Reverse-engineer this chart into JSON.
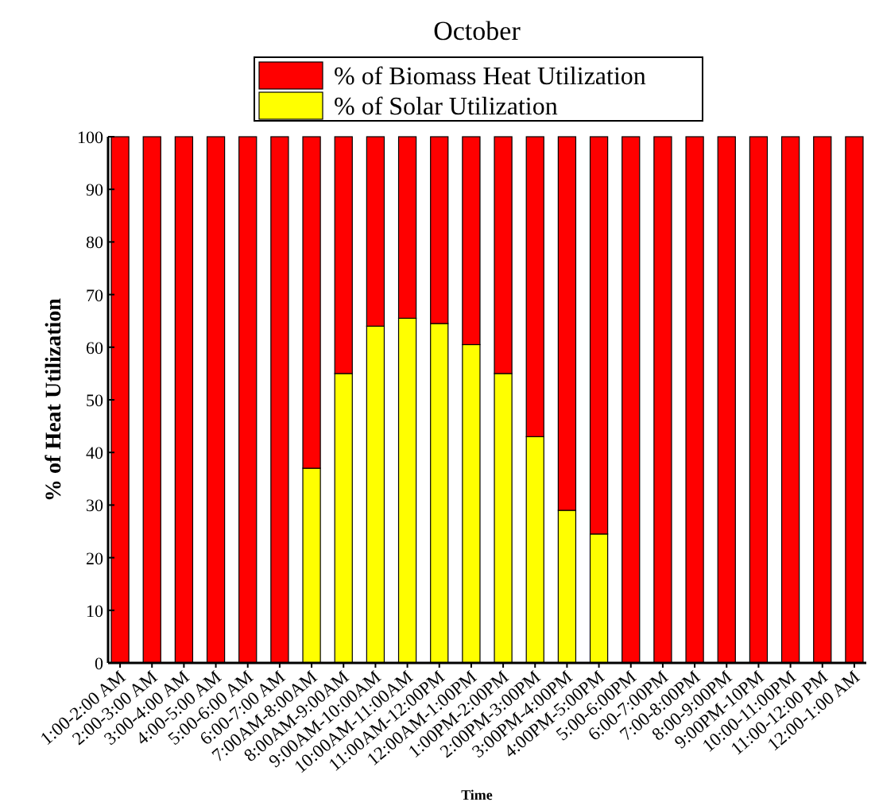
{
  "chart_data": {
    "type": "bar",
    "title": "October",
    "xlabel": "Time",
    "ylabel": "% of Heat Utilization",
    "categories": [
      "1:00-2:00 AM",
      "2:00-3:00 AM",
      "3:00-4:00 AM",
      "4:00-5:00 AM",
      "5:00-6:00 AM",
      "6:00-7:00 AM",
      "7:00AM-8:00AM",
      "8:00AM-9:00AM",
      "9:00AM-10:00AM",
      "10:00AM-11:00AM",
      "11:00AM-12:00PM",
      "12:00AM-1:00PM",
      "1:00PM-2:00PM",
      "2:00PM-3:00PM",
      "3:00PM-4:00PM",
      "4:00PM-5:00PM",
      "5:00-6:00PM",
      "6:00-7:00PM",
      "7:00-8:00PM",
      "8:00-9:00PM",
      "9:00PM-10PM",
      "10:00-11:00PM",
      "11:00-12:00 PM",
      "12:00-1:00 AM"
    ],
    "stacked": true,
    "series": [
      {
        "name": "% of Solar Utilization",
        "color": "#ffff00",
        "values": [
          0,
          0,
          0,
          0,
          0,
          0,
          37,
          55,
          64,
          65.5,
          64.5,
          60.5,
          55,
          43,
          29,
          24.5,
          0,
          0,
          0,
          0,
          0,
          0,
          0,
          0
        ]
      },
      {
        "name": "% of Biomass Heat Utilization",
        "color": "#ff0000",
        "values": [
          100,
          100,
          100,
          100,
          100,
          100,
          63,
          45,
          36,
          34.5,
          35.5,
          39.5,
          45,
          57,
          71,
          75.5,
          100,
          100,
          100,
          100,
          100,
          100,
          100,
          100
        ]
      }
    ],
    "ylim": [
      0,
      100
    ],
    "yticks": [
      0,
      10,
      20,
      30,
      40,
      50,
      60,
      70,
      80,
      90,
      100
    ],
    "grid": false,
    "legend": "top"
  }
}
